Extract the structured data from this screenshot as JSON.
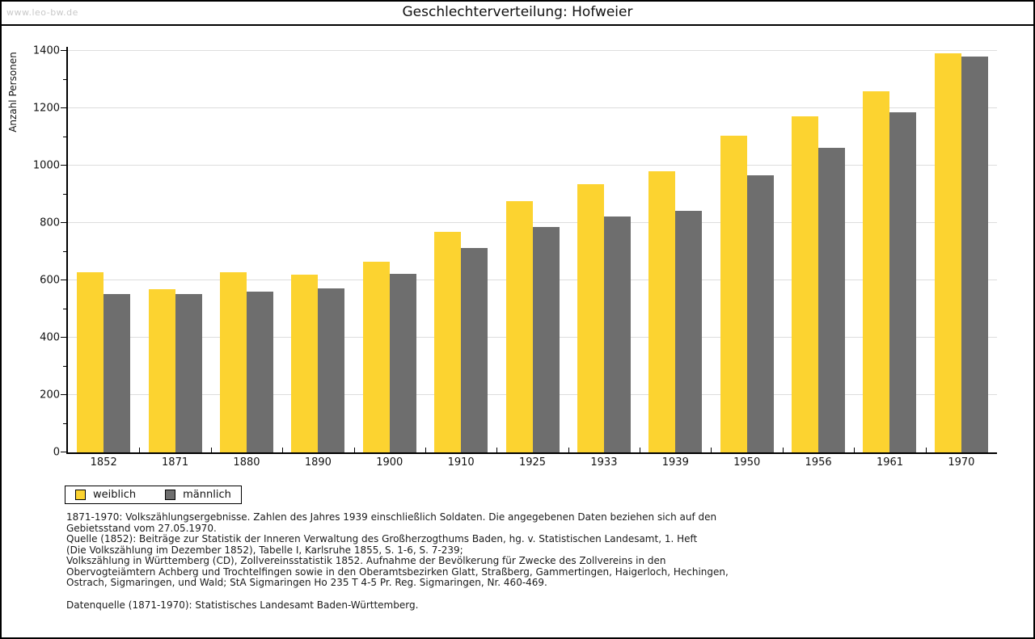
{
  "watermark": "www.leo-bw.de",
  "title": "Geschlechterverteilung: Hofweier",
  "colors": {
    "female": "#FCD330",
    "male": "#6E6E6E",
    "grid": "#DDDDDD",
    "axis": "#000000",
    "watermark_text": "#C9C9C9"
  },
  "chart_data": {
    "type": "bar",
    "title": "Geschlechterverteilung: Hofweier",
    "xlabel": "",
    "ylabel": "Anzahl Personen",
    "ylim": [
      0,
      1400
    ],
    "yticks": [
      0,
      200,
      400,
      600,
      800,
      1000,
      1200,
      1400
    ],
    "minor_tick_step": 100,
    "grid": true,
    "legend_position": "bottom-left",
    "categories": [
      "1852",
      "1871",
      "1880",
      "1890",
      "1900",
      "1910",
      "1925",
      "1933",
      "1939",
      "1950",
      "1956",
      "1961",
      "1970"
    ],
    "series": [
      {
        "name": "weiblich",
        "color": "#FCD330",
        "values": [
          628,
          568,
          628,
          620,
          665,
          768,
          877,
          936,
          981,
          1105,
          1173,
          1260,
          1391
        ]
      },
      {
        "name": "männlich",
        "color": "#6E6E6E",
        "values": [
          552,
          551,
          562,
          572,
          622,
          714,
          787,
          822,
          842,
          965,
          1061,
          1185,
          1381
        ]
      }
    ]
  },
  "footnotes": {
    "lines": [
      "1871-1970: Volkszählungsergebnisse. Zahlen des Jahres 1939 einschließlich Soldaten. Die angegebenen Daten beziehen sich auf den",
      "Gebietsstand vom 27.05.1970.",
      "Quelle (1852): Beiträge zur Statistik der Inneren Verwaltung des Großherzogthums Baden, hg. v. Statistischen Landesamt, 1. Heft",
      "(Die Volkszählung im Dezember 1852), Tabelle I, Karlsruhe 1855, S. 1-6, S. 7-239;",
      "Volkszählung in Württemberg (CD), Zollvereinsstatistik 1852. Aufnahme der Bevölkerung für Zwecke des Zollvereins in den",
      "Obervogteiämtern Achberg und Trochtelfingen sowie in den Oberamtsbezirken Glatt, Straßberg, Gammertingen, Haigerloch, Hechingen,",
      "Ostrach, Sigmaringen, und Wald; StA Sigmaringen Ho 235 T 4-5 Pr. Reg. Sigmaringen, Nr. 460-469."
    ],
    "datasource": "Datenquelle (1871-1970): Statistisches Landesamt Baden-Württemberg."
  }
}
